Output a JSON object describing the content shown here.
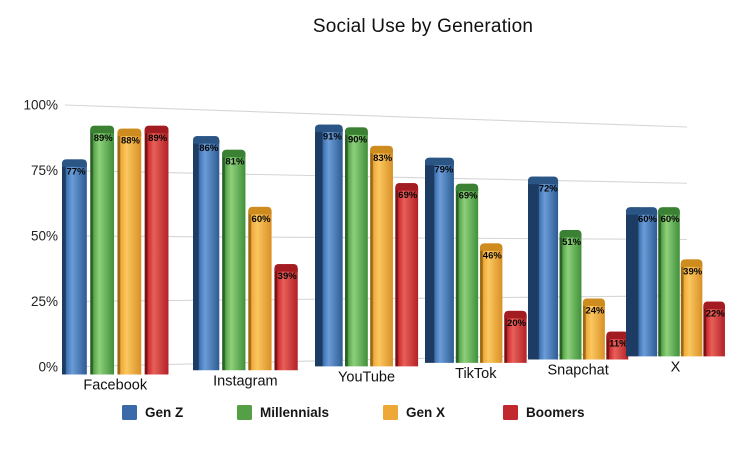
{
  "title": "Social Use by Generation",
  "chart_data": {
    "type": "bar",
    "style": "3d-perspective-grouped",
    "title": "Social Use by Generation",
    "categories": [
      "Facebook",
      "Instagram",
      "YouTube",
      "TikTok",
      "Snapchat",
      "X"
    ],
    "series": [
      {
        "name": "Gen Z",
        "color": "#3a6ba8",
        "shades": {
          "light": "#6b9cd8",
          "main": "#3e73b2",
          "shade": "#2d5b91",
          "side": "#1d3c63",
          "cap": "#2a5585"
        },
        "values": [
          77,
          86,
          91,
          79,
          72,
          60
        ]
      },
      {
        "name": "Millennials",
        "color": "#55a047",
        "shades": {
          "light": "#8ed07b",
          "main": "#57a54b",
          "shade": "#408f3a",
          "side": "#2c6026",
          "cap": "#3a8134"
        },
        "values": [
          89,
          81,
          90,
          69,
          51,
          60
        ]
      },
      {
        "name": "Gen X",
        "color": "#eda838",
        "shades": {
          "light": "#fbc75f",
          "main": "#f0a93c",
          "shade": "#d98f26",
          "side": "#9d6a12",
          "cap": "#cf8c1e"
        },
        "values": [
          88,
          60,
          83,
          46,
          24,
          39
        ]
      },
      {
        "name": "Boomers",
        "color": "#c2292e",
        "shades": {
          "light": "#e85f58",
          "main": "#cd2c32",
          "shade": "#b22127",
          "side": "#771114",
          "cap": "#a31c22"
        },
        "values": [
          89,
          39,
          69,
          20,
          11,
          22
        ]
      }
    ],
    "value_suffix": "%",
    "y_ticks": [
      "0%",
      "25%",
      "50%",
      "75%",
      "100%"
    ],
    "ylim": [
      0,
      100
    ],
    "grid": true,
    "legend_position": "bottom"
  }
}
